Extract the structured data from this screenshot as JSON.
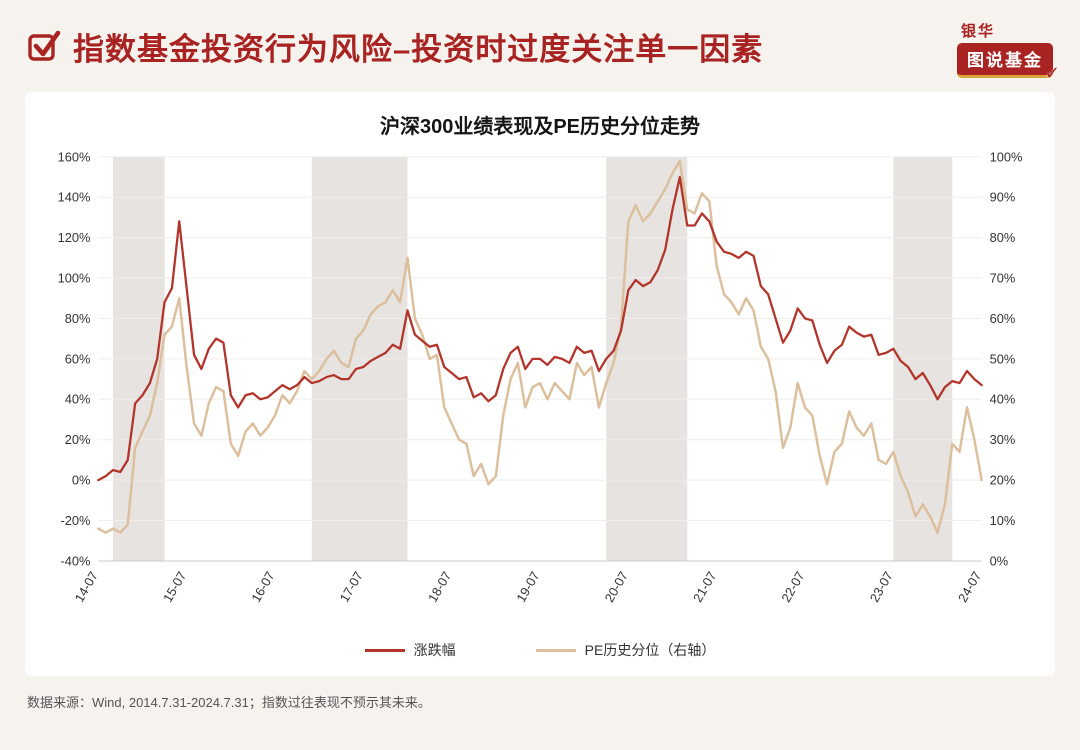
{
  "header": {
    "title": "指数基金投资行为风险–投资时过度关注单一因素",
    "title_color": "#a82321",
    "logo_top": "银华",
    "logo_bottom": "图说基金"
  },
  "footer": {
    "note": "数据来源：Wind, 2014.7.31-2024.7.31；指数过往表现不预示其未来。"
  },
  "chart_data": {
    "type": "line",
    "title": "沪深300业绩表现及PE历史分位走势",
    "x_start": "2014-07",
    "x_end": "2024-07",
    "x_frequency": "monthly",
    "x_tick_labels": [
      "14-07",
      "15-07",
      "16-07",
      "17-07",
      "18-07",
      "19-07",
      "20-07",
      "21-07",
      "22-07",
      "23-07",
      "24-07"
    ],
    "left_axis": {
      "min": -40,
      "max": 160,
      "step": 20,
      "unit": "%"
    },
    "right_axis": {
      "min": 0,
      "max": 100,
      "step": 10,
      "unit": "%"
    },
    "band_color": "#e6e3e0",
    "grid": "faint-horizontal",
    "legend_position": "bottom-center",
    "shaded_bands": [
      {
        "start": 2,
        "end": 9
      },
      {
        "start": 29,
        "end": 42
      },
      {
        "start": 69,
        "end": 80
      },
      {
        "start": 108,
        "end": 116
      }
    ],
    "series": [
      {
        "name": "涨跌幅",
        "axis": "left",
        "color": "#b2342a",
        "values": [
          0,
          2,
          5,
          4,
          10,
          38,
          42,
          48,
          60,
          88,
          95,
          128,
          95,
          62,
          55,
          65,
          70,
          68,
          42,
          36,
          42,
          43,
          40,
          41,
          44,
          47,
          45,
          47,
          51,
          48,
          49,
          51,
          52,
          50,
          50,
          55,
          56,
          59,
          61,
          63,
          67,
          65,
          84,
          72,
          69,
          66,
          67,
          56,
          53,
          50,
          51,
          41,
          43,
          39,
          42,
          55,
          63,
          66,
          55,
          60,
          60,
          57,
          61,
          60,
          58,
          66,
          63,
          64,
          54,
          60,
          64,
          74,
          94,
          99,
          96,
          98,
          104,
          114,
          134,
          150,
          126,
          126,
          132,
          128,
          118,
          113,
          112,
          110,
          113,
          111,
          96,
          92,
          80,
          68,
          74,
          85,
          80,
          79,
          67,
          58,
          64,
          67,
          76,
          73,
          71,
          72,
          62,
          63,
          65,
          59,
          56,
          50,
          53,
          47,
          40,
          46,
          49,
          48,
          54,
          50,
          47
        ]
      },
      {
        "name": "PE历史分位（右轴）",
        "axis": "right",
        "color": "#dcbf9c",
        "values": [
          8,
          7,
          8,
          7,
          9,
          28,
          32,
          36,
          44,
          56,
          58,
          65,
          48,
          34,
          31,
          39,
          43,
          42,
          29,
          26,
          32,
          34,
          31,
          33,
          36,
          41,
          39,
          42,
          47,
          45,
          47,
          50,
          52,
          49,
          48,
          55,
          57,
          61,
          63,
          64,
          67,
          64,
          75,
          60,
          56,
          50,
          51,
          38,
          34,
          30,
          29,
          21,
          24,
          19,
          21,
          36,
          45,
          49,
          38,
          43,
          44,
          40,
          44,
          42,
          40,
          49,
          46,
          48,
          38,
          44,
          49,
          58,
          84,
          88,
          84,
          86,
          89,
          92,
          96,
          99,
          87,
          86,
          91,
          89,
          73,
          66,
          64,
          61,
          65,
          62,
          53,
          50,
          42,
          28,
          33,
          44,
          38,
          36,
          26,
          19,
          27,
          29,
          37,
          33,
          31,
          34,
          25,
          24,
          27,
          21,
          17,
          11,
          14,
          11,
          7,
          14,
          29,
          27,
          38,
          30,
          20
        ]
      }
    ]
  }
}
